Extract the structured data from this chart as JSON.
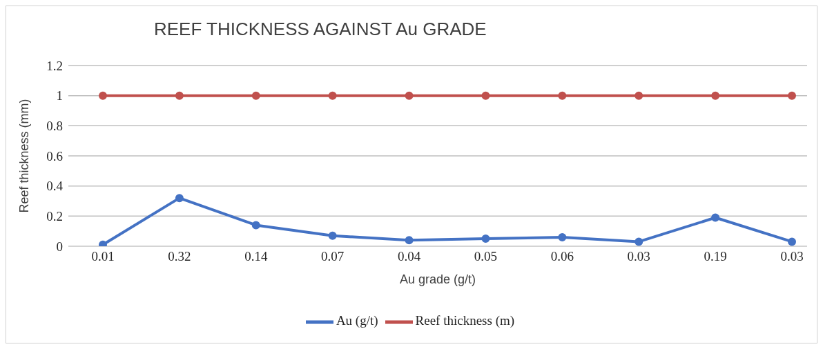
{
  "chart_data": {
    "type": "line",
    "title": "REEF THICKNESS AGAINST Au GRADE",
    "xlabel": "Au grade (g/t)",
    "ylabel": "Reef thickness (mm)",
    "categories": [
      "0.01",
      "0.32",
      "0.14",
      "0.07",
      "0.04",
      "0.05",
      "0.06",
      "0.03",
      "0.19",
      "0.03"
    ],
    "series": [
      {
        "name": "Au (g/t)",
        "color": "#4472c4",
        "values": [
          0.01,
          0.32,
          0.14,
          0.07,
          0.04,
          0.05,
          0.06,
          0.03,
          0.19,
          0.03
        ]
      },
      {
        "name": "Reef thickness (m)",
        "color": "#c0504d",
        "values": [
          1,
          1,
          1,
          1,
          1,
          1,
          1,
          1,
          1,
          1
        ]
      }
    ],
    "ylim": [
      0,
      1.2
    ],
    "yticks": [
      0,
      0.2,
      0.4,
      0.6,
      0.8,
      1,
      1.2
    ],
    "grid": "y",
    "legend": "bottom",
    "marker": "circle",
    "line_style": "solid"
  }
}
